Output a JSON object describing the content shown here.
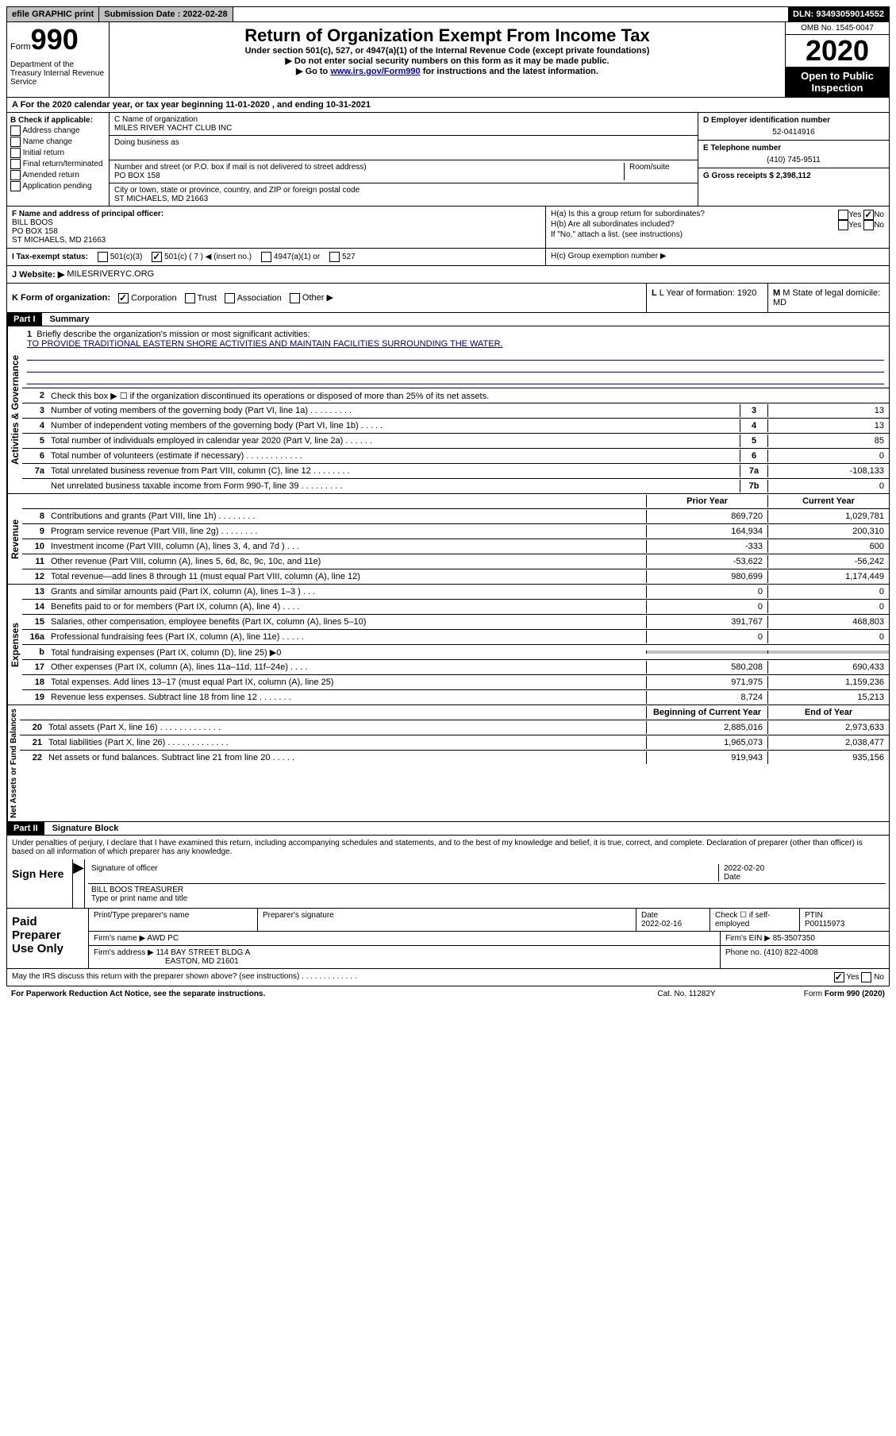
{
  "top": {
    "efile": "efile GRAPHIC print",
    "submission": "Submission Date : 2022-02-28",
    "dln": "DLN: 93493059014552"
  },
  "header": {
    "form_label": "Form",
    "form_number": "990",
    "dept": "Department of the Treasury Internal Revenue Service",
    "title": "Return of Organization Exempt From Income Tax",
    "subtitle": "Under section 501(c), 527, or 4947(a)(1) of the Internal Revenue Code (except private foundations)",
    "inst1": "▶ Do not enter social security numbers on this form as it may be made public.",
    "inst2_pre": "▶ Go to ",
    "inst2_link": "www.irs.gov/Form990",
    "inst2_post": " for instructions and the latest information.",
    "omb": "OMB No. 1545-0047",
    "year": "2020",
    "inspection": "Open to Public Inspection"
  },
  "section_a": {
    "line_a": "A For the 2020 calendar year, or tax year beginning 11-01-2020    , and ending 10-31-2021",
    "b_label": "B Check if applicable:",
    "b_opts": [
      "Address change",
      "Name change",
      "Initial return",
      "Final return/terminated",
      "Amended return",
      "Application pending"
    ],
    "c_label": "C Name of organization",
    "org_name": "MILES RIVER YACHT CLUB INC",
    "dba_label": "Doing business as",
    "addr_label": "Number and street (or P.O. box if mail is not delivered to street address)",
    "addr": "PO BOX 158",
    "room_label": "Room/suite",
    "city_label": "City or town, state or province, country, and ZIP or foreign postal code",
    "city": "ST MICHAELS, MD  21663",
    "d_label": "D Employer identification number",
    "ein": "52-0414916",
    "e_label": "E Telephone number",
    "phone": "(410) 745-9511",
    "g_label": "G Gross receipts $ 2,398,112",
    "f_label": "F  Name and address of principal officer:",
    "officer_name": "BILL BOOS",
    "officer_addr1": "PO BOX 158",
    "officer_addr2": "ST MICHAELS, MD  21663",
    "ha": "H(a)  Is this a group return for subordinates?",
    "hb": "H(b)  Are all subordinates included?",
    "hb_note": "If \"No,\" attach a list. (see instructions)",
    "hc": "H(c)  Group exemption number ▶",
    "i_label": "I  Tax-exempt status:",
    "i_501c3": "501(c)(3)",
    "i_501c": "501(c) ( 7 ) ◀ (insert no.)",
    "i_4947": "4947(a)(1) or",
    "i_527": "527",
    "j_label": "J  Website: ▶",
    "website": "MILESRIVERYC.ORG",
    "k_label": "K Form of organization:",
    "k_corp": "Corporation",
    "k_trust": "Trust",
    "k_assoc": "Association",
    "k_other": "Other ▶",
    "l_label": "L Year of formation: 1920",
    "m_label": "M State of legal domicile: MD"
  },
  "part1": {
    "header": "Part I",
    "title": "Summary",
    "side_gov": "Activities & Governance",
    "side_rev": "Revenue",
    "side_exp": "Expenses",
    "side_net": "Net Assets or Fund Balances",
    "line1_label": "Briefly describe the organization's mission or most significant activities:",
    "line1_text": "TO PROVIDE TRADITIONAL EASTERN SHORE ACTIVITIES AND MAINTAIN FACILITIES SURROUNDING THE WATER.",
    "line2": "Check this box ▶ ☐  if the organization discontinued its operations or disposed of more than 25% of its net assets.",
    "lines_single": [
      {
        "n": "3",
        "t": "Number of voting members of the governing body (Part VI, line 1a)    .    .    .    .    .    .    .    .    .",
        "box": "3",
        "v": "13"
      },
      {
        "n": "4",
        "t": "Number of independent voting members of the governing body (Part VI, line 1b)    .    .    .    .    .",
        "box": "4",
        "v": "13"
      },
      {
        "n": "5",
        "t": "Total number of individuals employed in calendar year 2020 (Part V, line 2a)    .    .    .    .    .    .",
        "box": "5",
        "v": "85"
      },
      {
        "n": "6",
        "t": "Total number of volunteers (estimate if necessary)    .    .    .    .    .    .    .    .    .    .    .    .",
        "box": "6",
        "v": "0"
      },
      {
        "n": "7a",
        "t": "Total unrelated business revenue from Part VIII, column (C), line 12    .    .    .    .    .    .    .    .",
        "box": "7a",
        "v": "-108,133"
      },
      {
        "n": "",
        "t": "Net unrelated business taxable income from Form 990-T, line 39    .    .    .    .    .    .    .    .    .",
        "box": "7b",
        "v": "0"
      }
    ],
    "col_prior": "Prior Year",
    "col_current": "Current Year",
    "lines_rev": [
      {
        "n": "8",
        "t": "Contributions and grants (Part VIII, line 1h)    .    .    .    .    .    .    .    .",
        "p": "869,720",
        "c": "1,029,781"
      },
      {
        "n": "9",
        "t": "Program service revenue (Part VIII, line 2g)    .    .    .    .    .    .    .    .",
        "p": "164,934",
        "c": "200,310"
      },
      {
        "n": "10",
        "t": "Investment income (Part VIII, column (A), lines 3, 4, and 7d )    .    .    .",
        "p": "-333",
        "c": "600"
      },
      {
        "n": "11",
        "t": "Other revenue (Part VIII, column (A), lines 5, 6d, 8c, 9c, 10c, and 11e)",
        "p": "-53,622",
        "c": "-56,242"
      },
      {
        "n": "12",
        "t": "Total revenue—add lines 8 through 11 (must equal Part VIII, column (A), line 12)",
        "p": "980,699",
        "c": "1,174,449"
      }
    ],
    "lines_exp": [
      {
        "n": "13",
        "t": "Grants and similar amounts paid (Part IX, column (A), lines 1–3 )    .    .    .",
        "p": "0",
        "c": "0"
      },
      {
        "n": "14",
        "t": "Benefits paid to or for members (Part IX, column (A), line 4)    .    .    .    .",
        "p": "0",
        "c": "0"
      },
      {
        "n": "15",
        "t": "Salaries, other compensation, employee benefits (Part IX, column (A), lines 5–10)",
        "p": "391,767",
        "c": "468,803"
      },
      {
        "n": "16a",
        "t": "Professional fundraising fees (Part IX, column (A), line 11e)    .    .    .    .    .",
        "p": "0",
        "c": "0"
      },
      {
        "n": "b",
        "t": "Total fundraising expenses (Part IX, column (D), line 25) ▶0",
        "p": "",
        "c": "",
        "gray": true
      },
      {
        "n": "17",
        "t": "Other expenses (Part IX, column (A), lines 11a–11d, 11f–24e)    .    .    .    .",
        "p": "580,208",
        "c": "690,433"
      },
      {
        "n": "18",
        "t": "Total expenses. Add lines 13–17 (must equal Part IX, column (A), line 25)",
        "p": "971,975",
        "c": "1,159,236"
      },
      {
        "n": "19",
        "t": "Revenue less expenses. Subtract line 18 from line 12    .    .    .    .    .    .    .",
        "p": "8,724",
        "c": "15,213"
      }
    ],
    "col_begin": "Beginning of Current Year",
    "col_end": "End of Year",
    "lines_net": [
      {
        "n": "20",
        "t": "Total assets (Part X, line 16)    .    .    .    .    .    .    .    .    .    .    .    .    .",
        "p": "2,885,016",
        "c": "2,973,633"
      },
      {
        "n": "21",
        "t": "Total liabilities (Part X, line 26)    .    .    .    .    .    .    .    .    .    .    .    .    .",
        "p": "1,965,073",
        "c": "2,038,477"
      },
      {
        "n": "22",
        "t": "Net assets or fund balances. Subtract line 21 from line 20    .    .    .    .    .",
        "p": "919,943",
        "c": "935,156"
      }
    ]
  },
  "part2": {
    "header": "Part II",
    "title": "Signature Block",
    "penalty": "Under penalties of perjury, I declare that I have examined this return, including accompanying schedules and statements, and to the best of my knowledge and belief, it is true, correct, and complete. Declaration of preparer (other than officer) is based on all information of which preparer has any knowledge.",
    "sign_here": "Sign Here",
    "sig_officer": "Signature of officer",
    "sig_date": "2022-02-20",
    "sig_date_label": "Date",
    "officer_name": "BILL BOOS TREASURER",
    "officer_title_label": "Type or print name and title",
    "paid_label": "Paid Preparer Use Only",
    "prep_name_label": "Print/Type preparer's name",
    "prep_sig_label": "Preparer's signature",
    "prep_date_label": "Date",
    "prep_date": "2022-02-16",
    "check_label": "Check ☐ if self-employed",
    "ptin_label": "PTIN",
    "ptin": "P00115973",
    "firm_name_label": "Firm's name    ▶",
    "firm_name": "AWD PC",
    "firm_ein_label": "Firm's EIN ▶",
    "firm_ein": "85-3507350",
    "firm_addr_label": "Firm's address ▶",
    "firm_addr1": "114 BAY STREET BLDG A",
    "firm_addr2": "EASTON, MD  21601",
    "firm_phone_label": "Phone no.",
    "firm_phone": "(410) 822-4008",
    "discuss": "May the IRS discuss this return with the preparer shown above? (see instructions)    .    .    .    .    .    .    .    .    .    .    .    .    .",
    "yes": "Yes",
    "no": "No"
  },
  "footer": {
    "paperwork": "For Paperwork Reduction Act Notice, see the separate instructions.",
    "cat": "Cat. No. 11282Y",
    "form": "Form 990 (2020)"
  }
}
